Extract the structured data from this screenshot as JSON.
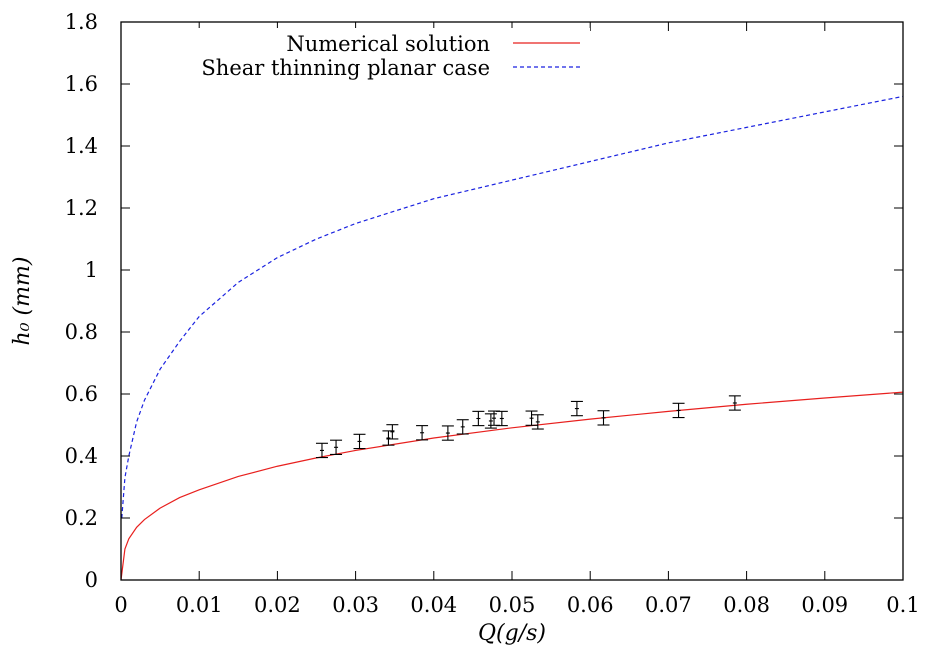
{
  "chart_data": {
    "type": "line",
    "title": "",
    "xlabel": "Q(g/s)",
    "ylabel": "h₀ (mm)",
    "xlim": [
      0,
      0.1
    ],
    "ylim": [
      0,
      1.8
    ],
    "x_ticks": [
      "0",
      "0.01",
      "0.02",
      "0.03",
      "0.04",
      "0.05",
      "0.06",
      "0.07",
      "0.08",
      "0.09",
      "0.1"
    ],
    "y_ticks": [
      "0",
      "0.2",
      "0.4",
      "0.6",
      "0.8",
      "1",
      "1.2",
      "1.4",
      "1.6",
      "1.8"
    ],
    "grid": false,
    "legend_position": "top",
    "series": [
      {
        "name": "Numerical solution",
        "style": "solid",
        "color": "#e8201e",
        "x": [
          0,
          0.0005,
          0.001,
          0.002,
          0.003,
          0.005,
          0.0075,
          0.01,
          0.015,
          0.02,
          0.025,
          0.03,
          0.04,
          0.05,
          0.06,
          0.07,
          0.08,
          0.09,
          0.1
        ],
        "y": [
          0,
          0.1,
          0.133,
          0.17,
          0.195,
          0.232,
          0.266,
          0.291,
          0.334,
          0.367,
          0.394,
          0.418,
          0.458,
          0.491,
          0.519,
          0.544,
          0.567,
          0.587,
          0.606
        ]
      },
      {
        "name": "Shear thinning planar case",
        "style": "dashed",
        "color": "#1a22e0",
        "x": [
          0.0001,
          0.0005,
          0.001,
          0.002,
          0.003,
          0.005,
          0.0075,
          0.01,
          0.015,
          0.02,
          0.025,
          0.03,
          0.04,
          0.05,
          0.06,
          0.07,
          0.08,
          0.09,
          0.1
        ],
        "y": [
          0.2,
          0.33,
          0.4,
          0.51,
          0.58,
          0.68,
          0.77,
          0.85,
          0.96,
          1.04,
          1.1,
          1.15,
          1.23,
          1.29,
          1.35,
          1.41,
          1.46,
          1.51,
          1.56
        ]
      },
      {
        "name": "",
        "style": "errorbars",
        "color": "#000000",
        "points": [
          {
            "x": 0.0257,
            "y": 0.418,
            "err": 0.023
          },
          {
            "x": 0.0275,
            "y": 0.428,
            "err": 0.023
          },
          {
            "x": 0.0305,
            "y": 0.447,
            "err": 0.023
          },
          {
            "x": 0.0342,
            "y": 0.458,
            "err": 0.023
          },
          {
            "x": 0.0347,
            "y": 0.478,
            "err": 0.023
          },
          {
            "x": 0.0385,
            "y": 0.475,
            "err": 0.023
          },
          {
            "x": 0.0418,
            "y": 0.474,
            "err": 0.023
          },
          {
            "x": 0.0437,
            "y": 0.494,
            "err": 0.023
          },
          {
            "x": 0.0457,
            "y": 0.521,
            "err": 0.023
          },
          {
            "x": 0.0473,
            "y": 0.513,
            "err": 0.023
          },
          {
            "x": 0.0477,
            "y": 0.522,
            "err": 0.023
          },
          {
            "x": 0.0487,
            "y": 0.521,
            "err": 0.023
          },
          {
            "x": 0.0525,
            "y": 0.522,
            "err": 0.023
          },
          {
            "x": 0.0533,
            "y": 0.51,
            "err": 0.023
          },
          {
            "x": 0.0583,
            "y": 0.553,
            "err": 0.023
          },
          {
            "x": 0.0617,
            "y": 0.523,
            "err": 0.023
          },
          {
            "x": 0.0713,
            "y": 0.547,
            "err": 0.023
          },
          {
            "x": 0.0785,
            "y": 0.571,
            "err": 0.023
          }
        ]
      }
    ]
  }
}
